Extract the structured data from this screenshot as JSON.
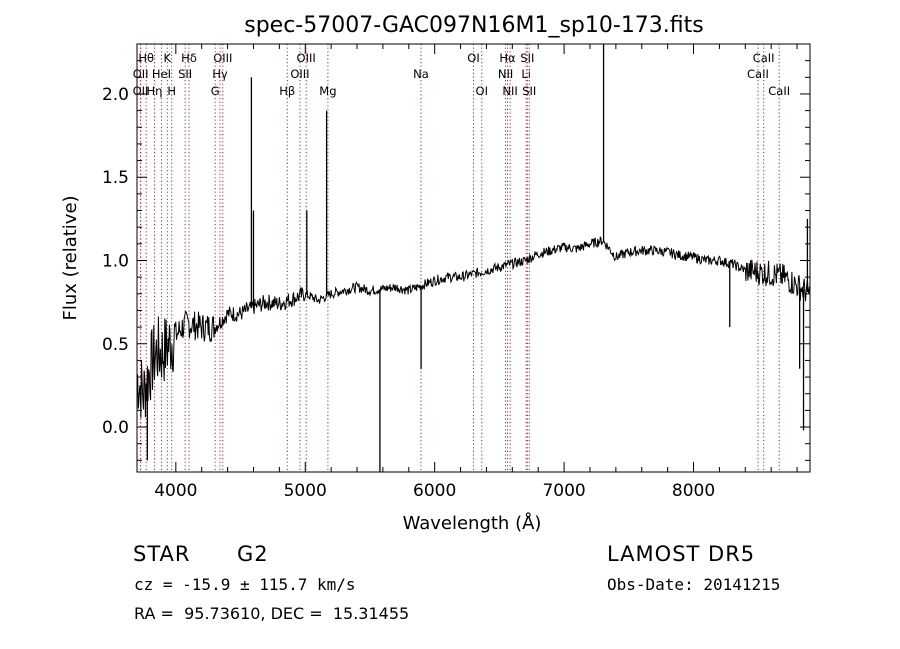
{
  "chart_data": {
    "type": "line",
    "title": "spec-57007-GAC097N16M1_sp10-173.fits",
    "xlabel": "Wavelength (Å)",
    "ylabel": "Flux (relative)",
    "xlim": [
      3700,
      8900
    ],
    "ylim": [
      -0.27,
      2.3
    ],
    "xticks": [
      4000,
      5000,
      6000,
      7000,
      8000
    ],
    "yticks": [
      0.0,
      0.5,
      1.0,
      1.5,
      2.0
    ],
    "ytick_labels": [
      "0.0",
      "0.5",
      "1.0",
      "1.5",
      "2.0"
    ],
    "grid": false,
    "line_color": "#000000",
    "marker_color": "#b22222",
    "series": [
      {
        "x": [
          3700,
          3750,
          3800,
          3850,
          3900,
          3950,
          4000,
          4050,
          4100,
          4200,
          4300,
          4400,
          4500,
          4600,
          4700,
          4800,
          4900,
          5000,
          5100,
          5200,
          5300,
          5400,
          5500,
          5600,
          5700,
          5800,
          5900,
          6000,
          6100,
          6200,
          6300,
          6400,
          6500,
          6600,
          6700,
          6800,
          6900,
          7000,
          7100,
          7200,
          7300,
          7400,
          7500,
          7600,
          7700,
          7800,
          7900,
          8000,
          8100,
          8200,
          8300,
          8400,
          8500,
          8600,
          8700,
          8800,
          8900
        ],
        "y": [
          0.3,
          0.2,
          0.35,
          0.45,
          0.45,
          0.5,
          0.55,
          0.6,
          0.62,
          0.6,
          0.6,
          0.68,
          0.68,
          0.72,
          0.75,
          0.74,
          0.77,
          0.8,
          0.76,
          0.8,
          0.82,
          0.84,
          0.82,
          0.83,
          0.84,
          0.82,
          0.85,
          0.88,
          0.9,
          0.9,
          0.92,
          0.94,
          0.96,
          0.98,
          1.0,
          1.04,
          1.06,
          1.08,
          1.07,
          1.1,
          1.12,
          1.02,
          1.05,
          1.06,
          1.06,
          1.05,
          1.03,
          1.02,
          1.0,
          1.0,
          0.98,
          0.94,
          0.93,
          0.92,
          0.9,
          0.85,
          0.8
        ]
      }
    ],
    "spikes": [
      {
        "x": 4584,
        "y": 2.1
      },
      {
        "x": 4600,
        "y": 1.3
      },
      {
        "x": 5165,
        "y": 1.9
      },
      {
        "x": 5012,
        "y": 1.3
      },
      {
        "x": 7305,
        "y": 2.3
      },
      {
        "x": 5577,
        "y": -0.27
      },
      {
        "x": 5895,
        "y": 0.35
      },
      {
        "x": 8280,
        "y": 0.6
      },
      {
        "x": 3780,
        "y": -0.2
      },
      {
        "x": 8850,
        "y": -0.02
      },
      {
        "x": 8820,
        "y": 0.35
      },
      {
        "x": 8880,
        "y": 1.25
      }
    ],
    "line_markers": [
      {
        "x": 3771,
        "label": "Hθ",
        "row": 0
      },
      {
        "x": 3728,
        "label": "OII",
        "row": 1
      },
      {
        "x": 3727,
        "label": "OII",
        "row": 2
      },
      {
        "x": 3835,
        "label": "Hη",
        "row": 2
      },
      {
        "x": 3934,
        "label": "K",
        "row": 0
      },
      {
        "x": 3889,
        "label": "HeI",
        "row": 1
      },
      {
        "x": 3968,
        "label": "H",
        "row": 2
      },
      {
        "x": 4102,
        "label": "Hδ",
        "row": 0
      },
      {
        "x": 4072,
        "label": "SII",
        "row": 1
      },
      {
        "x": 4363,
        "label": "OIII",
        "row": 0
      },
      {
        "x": 4341,
        "label": "Hγ",
        "row": 1
      },
      {
        "x": 4304,
        "label": "G",
        "row": 2
      },
      {
        "x": 4861,
        "label": "Hβ",
        "row": 2
      },
      {
        "x": 4959,
        "label": "OIII",
        "row": 1
      },
      {
        "x": 5007,
        "label": "OIII",
        "row": 0
      },
      {
        "x": 5175,
        "label": "Mg",
        "row": 2
      },
      {
        "x": 5894,
        "label": "Na",
        "row": 1
      },
      {
        "x": 6300,
        "label": "OI",
        "row": 0
      },
      {
        "x": 6364,
        "label": "OI",
        "row": 2
      },
      {
        "x": 6548,
        "label": "NII",
        "row": 1
      },
      {
        "x": 6563,
        "label": "Hα",
        "row": 0
      },
      {
        "x": 6583,
        "label": "NII",
        "row": 2
      },
      {
        "x": 6707,
        "label": "Li",
        "row": 1
      },
      {
        "x": 6716,
        "label": "SII",
        "row": 0
      },
      {
        "x": 6731,
        "label": "SII",
        "row": 2
      },
      {
        "x": 8498,
        "label": "CaII",
        "row": 1
      },
      {
        "x": 8542,
        "label": "CaII",
        "row": 0
      },
      {
        "x": 8662,
        "label": "CaII",
        "row": 2
      }
    ]
  },
  "info": {
    "class": "STAR",
    "subclass": "G2",
    "survey": "LAMOST DR5",
    "cz": "cz = -15.9 ± 115.7 km/s",
    "obs_date": "Obs-Date: 20141215",
    "coords": "RA =  95.73610, DEC =  15.31455"
  }
}
